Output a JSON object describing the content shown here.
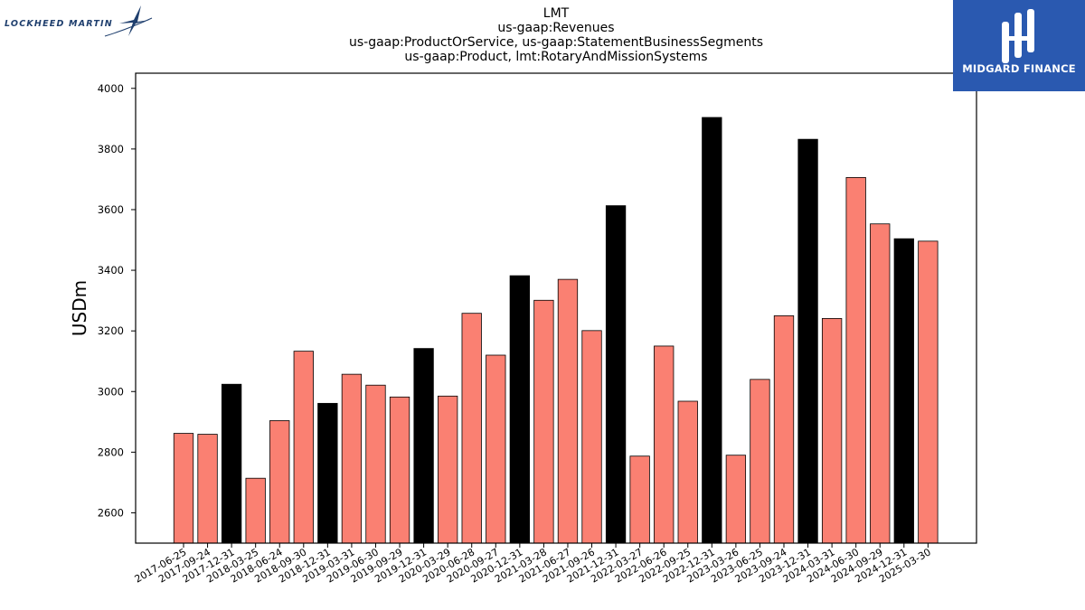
{
  "header": {
    "title_lines": [
      "LMT",
      "us-gaap:Revenues",
      "us-gaap:ProductOrService, us-gaap:StatementBusinessSegments",
      "us-gaap:Product, lmt:RotaryAndMissionSystems"
    ]
  },
  "logos": {
    "left_text": "LOCKHEED MARTIN",
    "right_text": "MIDGARD FINANCE",
    "right_bg_color": "#2a59b0"
  },
  "chart_data": {
    "type": "bar",
    "title": "LMT",
    "xlabel": "",
    "ylabel": "USDm",
    "ylim": [
      2500,
      4050
    ],
    "yticks": [
      2600,
      2800,
      3000,
      3200,
      3400,
      3600,
      3800,
      4000
    ],
    "grid": false,
    "colors": {
      "quarter": "#fa8072",
      "year_end": "#000000",
      "edge": "#000000"
    },
    "categories": [
      "2017-06-25",
      "2017-09-24",
      "2017-12-31",
      "2018-03-25",
      "2018-06-24",
      "2018-09-30",
      "2018-12-31",
      "2019-03-31",
      "2019-06-30",
      "2019-09-29",
      "2019-12-31",
      "2020-03-29",
      "2020-06-28",
      "2020-09-27",
      "2020-12-31",
      "2021-03-28",
      "2021-06-27",
      "2021-09-26",
      "2021-12-31",
      "2022-03-27",
      "2022-06-26",
      "2022-09-25",
      "2022-12-31",
      "2023-03-26",
      "2023-06-25",
      "2023-09-24",
      "2023-12-31",
      "2024-03-31",
      "2024-06-30",
      "2024-09-29",
      "2024-12-31",
      "2025-03-30"
    ],
    "values": [
      2862,
      2859,
      3024,
      2714,
      2904,
      3133,
      2961,
      3057,
      3021,
      2982,
      3142,
      2985,
      3258,
      3120,
      3382,
      3301,
      3370,
      3201,
      3613,
      2787,
      3150,
      2968,
      3904,
      2790,
      3040,
      3250,
      3832,
      3241,
      3706,
      3553,
      3504,
      3496
    ],
    "year_end": [
      false,
      false,
      true,
      false,
      false,
      false,
      true,
      false,
      false,
      false,
      true,
      false,
      false,
      false,
      true,
      false,
      false,
      false,
      true,
      false,
      false,
      false,
      true,
      false,
      false,
      false,
      true,
      false,
      false,
      false,
      true,
      false
    ]
  }
}
